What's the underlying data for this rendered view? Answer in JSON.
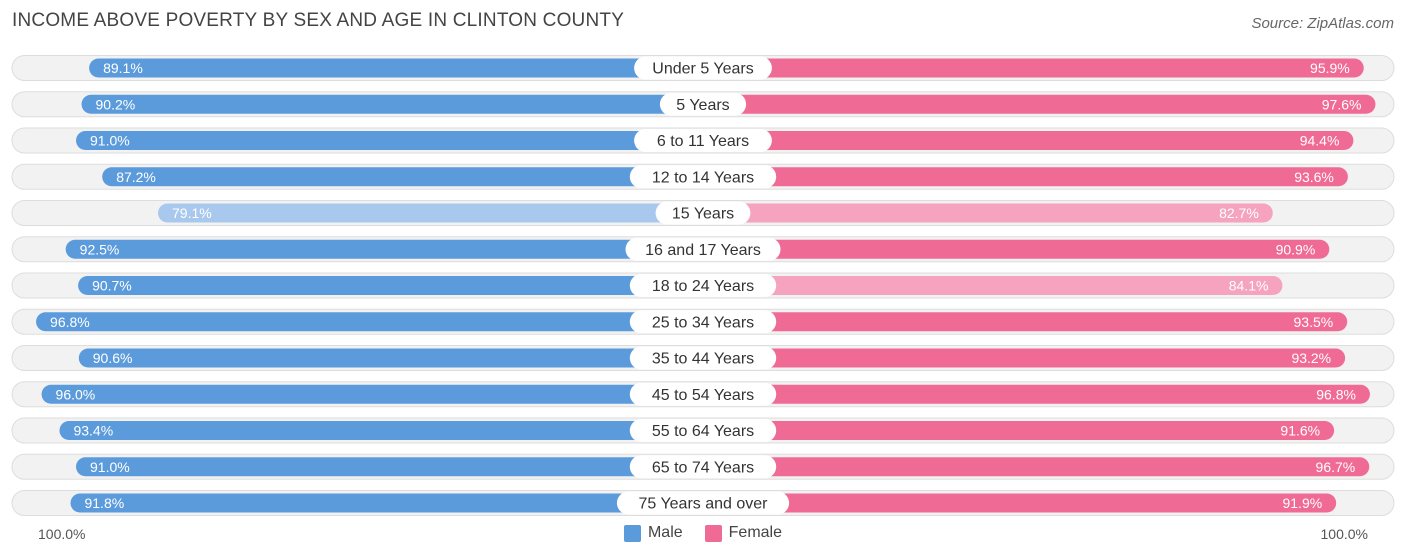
{
  "title": "INCOME ABOVE POVERTY BY SEX AND AGE IN CLINTON COUNTY",
  "source": "Source: ZipAtlas.com",
  "axis": {
    "left_label": "100.0%",
    "right_label": "100.0%"
  },
  "legend": {
    "male": "Male",
    "female": "Female"
  },
  "colors": {
    "male_strong": "#5b9bdc",
    "male_light": "#a9c8ee",
    "female_strong": "#f06a96",
    "female_light": "#f5a3bf",
    "row_bg": "#f2f2f2",
    "row_border": "#dddddd"
  },
  "chart_data": {
    "type": "bar",
    "orientation": "horizontal-diverging",
    "title": "INCOME ABOVE POVERTY BY SEX AND AGE IN CLINTON COUNTY",
    "xlim": [
      0,
      100
    ],
    "unit": "%",
    "categories": [
      "Under 5 Years",
      "5 Years",
      "6 to 11 Years",
      "12 to 14 Years",
      "15 Years",
      "16 and 17 Years",
      "18 to 24 Years",
      "25 to 34 Years",
      "35 to 44 Years",
      "45 to 54 Years",
      "55 to 64 Years",
      "65 to 74 Years",
      "75 Years and over"
    ],
    "series": [
      {
        "name": "Male",
        "side": "left",
        "values": [
          89.1,
          90.2,
          91.0,
          87.2,
          79.1,
          92.5,
          90.7,
          96.8,
          90.6,
          96.0,
          93.4,
          91.0,
          91.8
        ],
        "labels": [
          "89.1%",
          "90.2%",
          "91.0%",
          "87.2%",
          "79.1%",
          "92.5%",
          "90.7%",
          "96.8%",
          "90.6%",
          "96.0%",
          "93.4%",
          "91.0%",
          "91.8%"
        ]
      },
      {
        "name": "Female",
        "side": "right",
        "values": [
          95.9,
          97.6,
          94.4,
          93.6,
          82.7,
          90.9,
          84.1,
          93.5,
          93.2,
          96.8,
          91.6,
          96.7,
          91.9
        ],
        "labels": [
          "95.9%",
          "97.6%",
          "94.4%",
          "93.6%",
          "82.7%",
          "90.9%",
          "84.1%",
          "93.5%",
          "93.2%",
          "96.8%",
          "91.6%",
          "96.7%",
          "91.9%"
        ]
      }
    ]
  }
}
